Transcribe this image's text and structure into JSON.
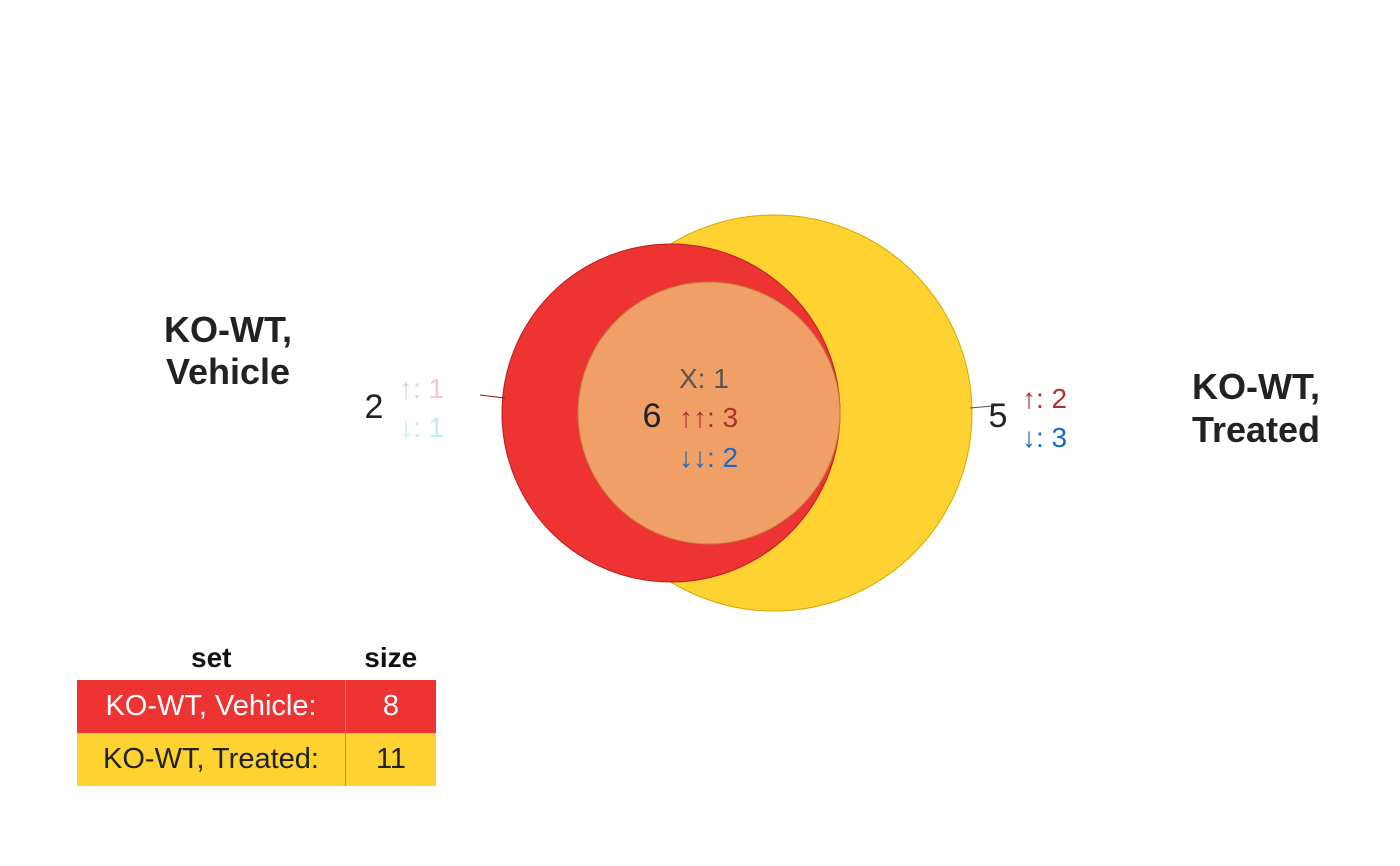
{
  "sets": [
    {
      "title_line1": "KO-WT,",
      "title_line2": "Vehicle",
      "color": "#ee3333",
      "size": 8,
      "only_count": "2",
      "only_up": "↑: 1",
      "only_down": "↓: 1"
    },
    {
      "title_line1": "KO-WT,",
      "title_line2": "Treated",
      "color": "#fdd231",
      "size": 11,
      "only_count": "5",
      "only_up": "↑: 2",
      "only_down": "↓: 3"
    }
  ],
  "intersection": {
    "count": "6",
    "mixed": "X: 1",
    "both_up": "↑↑: 3",
    "both_down": "↓↓: 2",
    "color": "#f0a066"
  },
  "legend": {
    "header_set": "set",
    "header_size": "size",
    "rows": [
      {
        "set": "KO-WT, Vehicle:",
        "size": "8"
      },
      {
        "set": "KO-WT, Treated:",
        "size": "11"
      }
    ]
  },
  "colors": {
    "up": "#b03030",
    "down": "#1a6bbf",
    "up_faded": "#f5c8c8",
    "down_faded": "#bfeef7",
    "mixed": "#555555"
  }
}
